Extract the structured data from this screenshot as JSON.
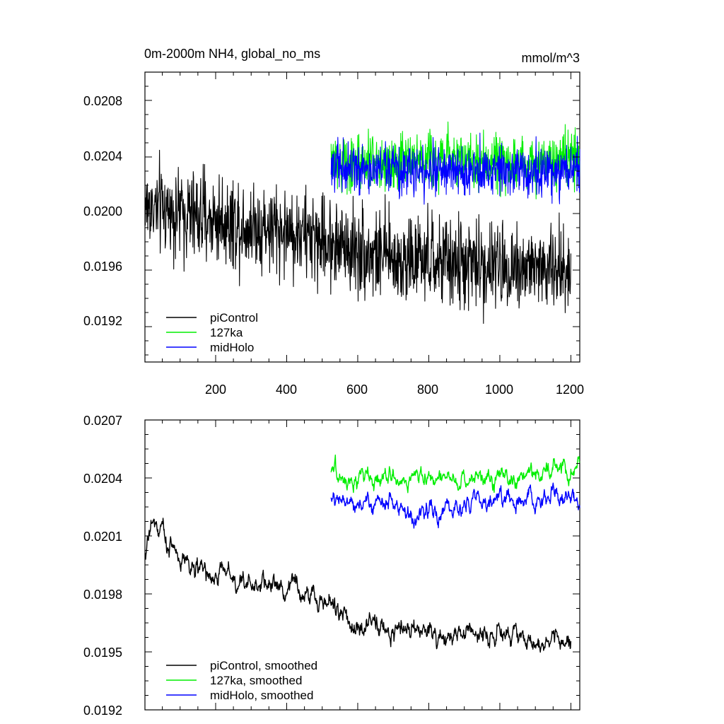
{
  "colors": {
    "piControl": "#000000",
    "127ka": "#00ee00",
    "midHolo": "#0000ff",
    "axis": "#000000"
  },
  "chart_data": [
    {
      "type": "line",
      "title": "0m-2000m NH4, global_no_ms",
      "units": "mmol/m^3",
      "xlabel": "",
      "ylabel": "",
      "xlim": [
        1,
        1225
      ],
      "ylim": [
        0.01895,
        0.021
      ],
      "xticks": [
        200,
        400,
        600,
        800,
        1000,
        1200
      ],
      "xtick_labels": [
        "200",
        "400",
        "600",
        "800",
        "1000",
        "1200"
      ],
      "yticks": [
        0.0192,
        0.0196,
        0.02,
        0.0204,
        0.0208
      ],
      "ytick_labels": [
        "0.0192",
        "0.0196",
        "0.0200",
        "0.0204",
        "0.0208"
      ],
      "grid": false,
      "legend_position": "bottom-left",
      "series": [
        {
          "name": "piControl",
          "label": "piControl",
          "color": "#000000",
          "start": 1,
          "end": 1200,
          "mean": 0.0198,
          "noise": 0.00045,
          "anchors": [
            [
              1,
              0.02005
            ],
            [
              150,
              0.01998
            ],
            [
              300,
              0.01992
            ],
            [
              450,
              0.01985
            ],
            [
              520,
              0.0198
            ],
            [
              700,
              0.01968
            ],
            [
              900,
              0.01964
            ],
            [
              1100,
              0.01962
            ],
            [
              1200,
              0.0196
            ]
          ]
        },
        {
          "name": "127ka",
          "label": "127ka",
          "color": "#00ee00",
          "start": 525,
          "end": 1225,
          "noise": 0.00028,
          "anchors": [
            [
              525,
              0.02035
            ],
            [
              800,
              0.0204
            ],
            [
              1000,
              0.02035
            ],
            [
              1225,
              0.0204
            ]
          ]
        },
        {
          "name": "midHolo",
          "label": "midHolo",
          "color": "#0000ff",
          "start": 525,
          "end": 1225,
          "noise": 0.00026,
          "anchors": [
            [
              525,
              0.02033
            ],
            [
              800,
              0.0203
            ],
            [
              1000,
              0.02028
            ],
            [
              1225,
              0.0203
            ]
          ]
        }
      ]
    },
    {
      "type": "line",
      "title": "",
      "xlabel": "",
      "ylabel": "",
      "xlim": [
        1,
        1225
      ],
      "ylim": [
        0.0192,
        0.0207
      ],
      "xticks": [
        200,
        400,
        600,
        800,
        1000,
        1200
      ],
      "xtick_labels": [],
      "yticks": [
        0.0192,
        0.0195,
        0.0198,
        0.0201,
        0.0204,
        0.0207
      ],
      "ytick_labels": [
        "0.0192",
        "0.0195",
        "0.0198",
        "0.0201",
        "0.0204",
        "0.0207"
      ],
      "grid": false,
      "legend_position": "bottom-left",
      "series": [
        {
          "name": "piControl",
          "label": "piControl, smoothed",
          "color": "#000000",
          "start": 1,
          "end": 1200,
          "noise": 0.00012,
          "anchors": [
            [
              1,
              0.02003
            ],
            [
              20,
              0.02018
            ],
            [
              100,
              0.02
            ],
            [
              200,
              0.0199
            ],
            [
              300,
              0.01985
            ],
            [
              400,
              0.01985
            ],
            [
              500,
              0.01978
            ],
            [
              600,
              0.01963
            ],
            [
              800,
              0.0196
            ],
            [
              1000,
              0.0196
            ],
            [
              1200,
              0.01955
            ]
          ]
        },
        {
          "name": "127ka",
          "label": "127ka, smoothed",
          "color": "#00ee00",
          "start": 525,
          "end": 1225,
          "noise": 0.0001,
          "anchors": [
            [
              525,
              0.0204
            ],
            [
              800,
              0.0204
            ],
            [
              1000,
              0.0204
            ],
            [
              1225,
              0.02045
            ]
          ]
        },
        {
          "name": "midHolo",
          "label": "midHolo, smoothed",
          "color": "#0000ff",
          "start": 525,
          "end": 1225,
          "noise": 0.0001,
          "anchors": [
            [
              525,
              0.0203
            ],
            [
              800,
              0.02022
            ],
            [
              1000,
              0.0203
            ],
            [
              1225,
              0.0203
            ]
          ]
        }
      ]
    }
  ]
}
